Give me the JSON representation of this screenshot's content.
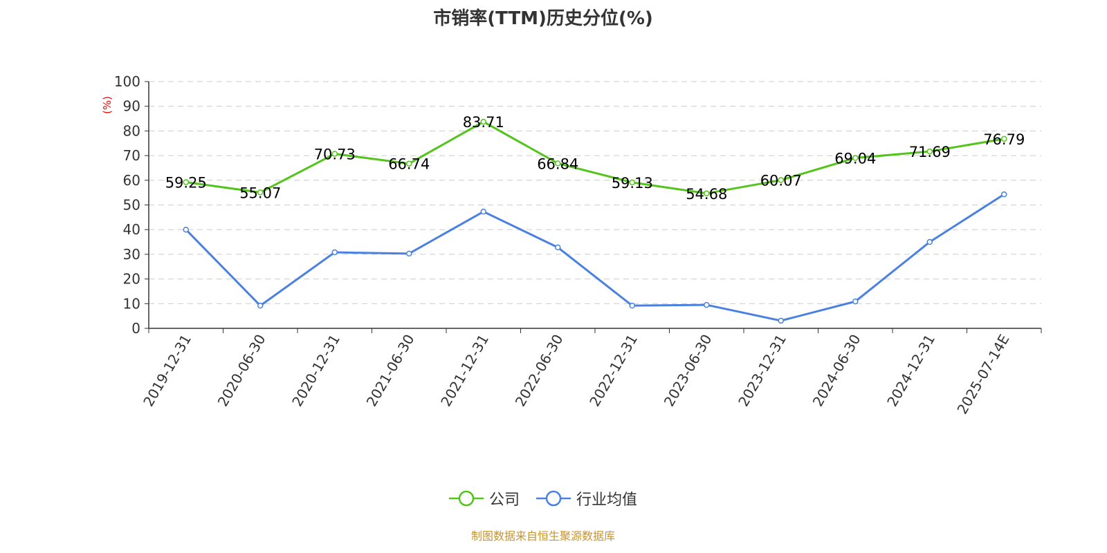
{
  "chart_data": {
    "type": "line",
    "title": "市销率(TTM)历史分位(%)",
    "ylabel": "(%)",
    "ylim": [
      0,
      100
    ],
    "yticks": [
      0,
      10,
      20,
      30,
      40,
      50,
      60,
      70,
      80,
      90,
      100
    ],
    "grid": true,
    "legend_placement": "bottom",
    "categories": [
      "2019-12-31",
      "2020-06-30",
      "2020-12-31",
      "2021-06-30",
      "2021-12-31",
      "2022-06-30",
      "2022-12-31",
      "2023-06-30",
      "2023-12-31",
      "2024-06-30",
      "2024-12-31",
      "2025-07-14E"
    ],
    "series": [
      {
        "name": "公司",
        "color": "#52c41a",
        "labels": true,
        "values": [
          59.25,
          55.07,
          70.73,
          66.74,
          83.71,
          66.84,
          59.13,
          54.68,
          60.07,
          69.04,
          71.69,
          76.79
        ]
      },
      {
        "name": "行业均值",
        "color": "#4a80e0",
        "labels": false,
        "values": [
          40.0,
          9.2,
          30.8,
          30.3,
          47.3,
          32.8,
          9.2,
          9.5,
          3.1,
          10.9,
          35.0,
          54.3
        ]
      }
    ]
  },
  "source": "制图数据来自恒生聚源数据库"
}
